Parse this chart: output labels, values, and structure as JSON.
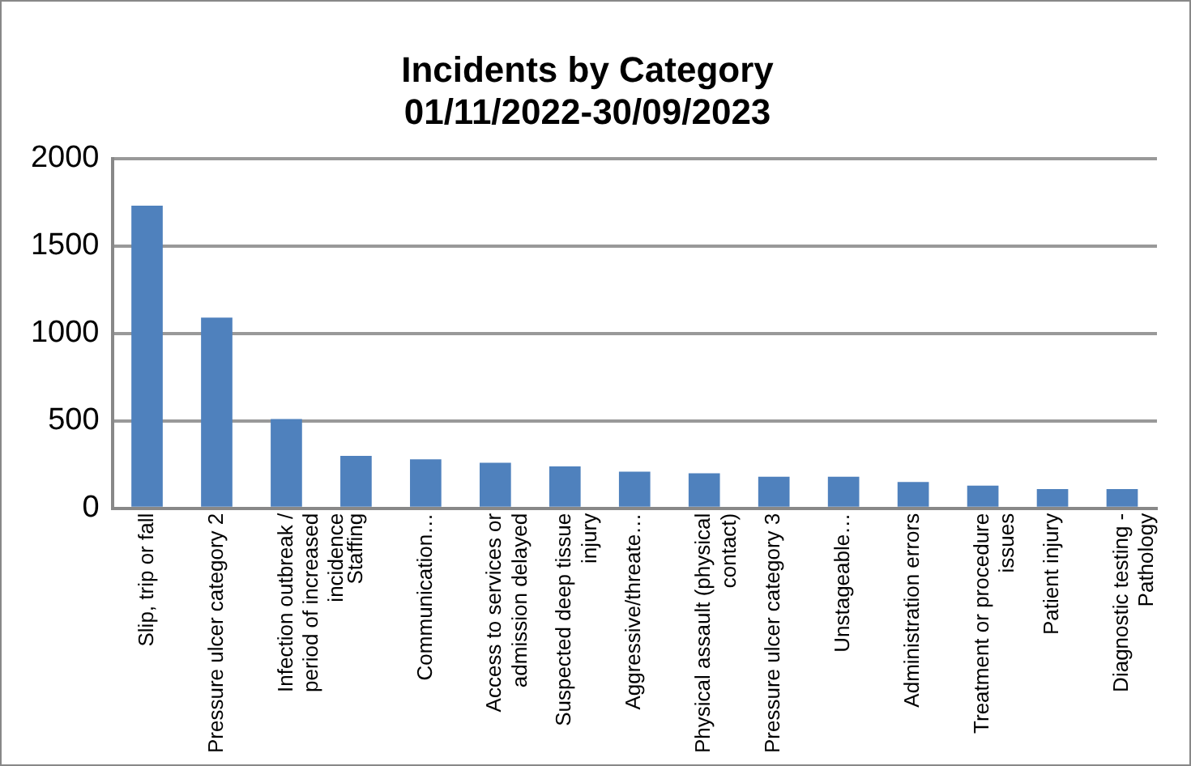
{
  "chart_data": {
    "type": "bar",
    "title": "Incidents by Category 01/11/2022-30/09/2023",
    "categories": [
      "Slip, trip or fall",
      "Pressure ulcer category 2",
      "Infection outbreak / period of increased incidence",
      "Staffing",
      "Communication…",
      "Access to services or admission delayed",
      "Suspected deep tissue injury",
      "Aggressive/threate…",
      "Physical assault (physical contact)",
      "Pressure ulcer category 3",
      "Unstageable…",
      "Administration errors",
      "Treatment or procedure issues",
      "Patient injury",
      "Diagnostic testing - Pathology"
    ],
    "values": [
      1730,
      1090,
      510,
      300,
      280,
      260,
      240,
      210,
      200,
      180,
      180,
      150,
      130,
      110,
      110
    ],
    "color": "#4f81bd",
    "ylim": [
      0,
      2000
    ],
    "yticks": [
      0,
      500,
      1000,
      1500,
      2000
    ],
    "grid": "y"
  }
}
